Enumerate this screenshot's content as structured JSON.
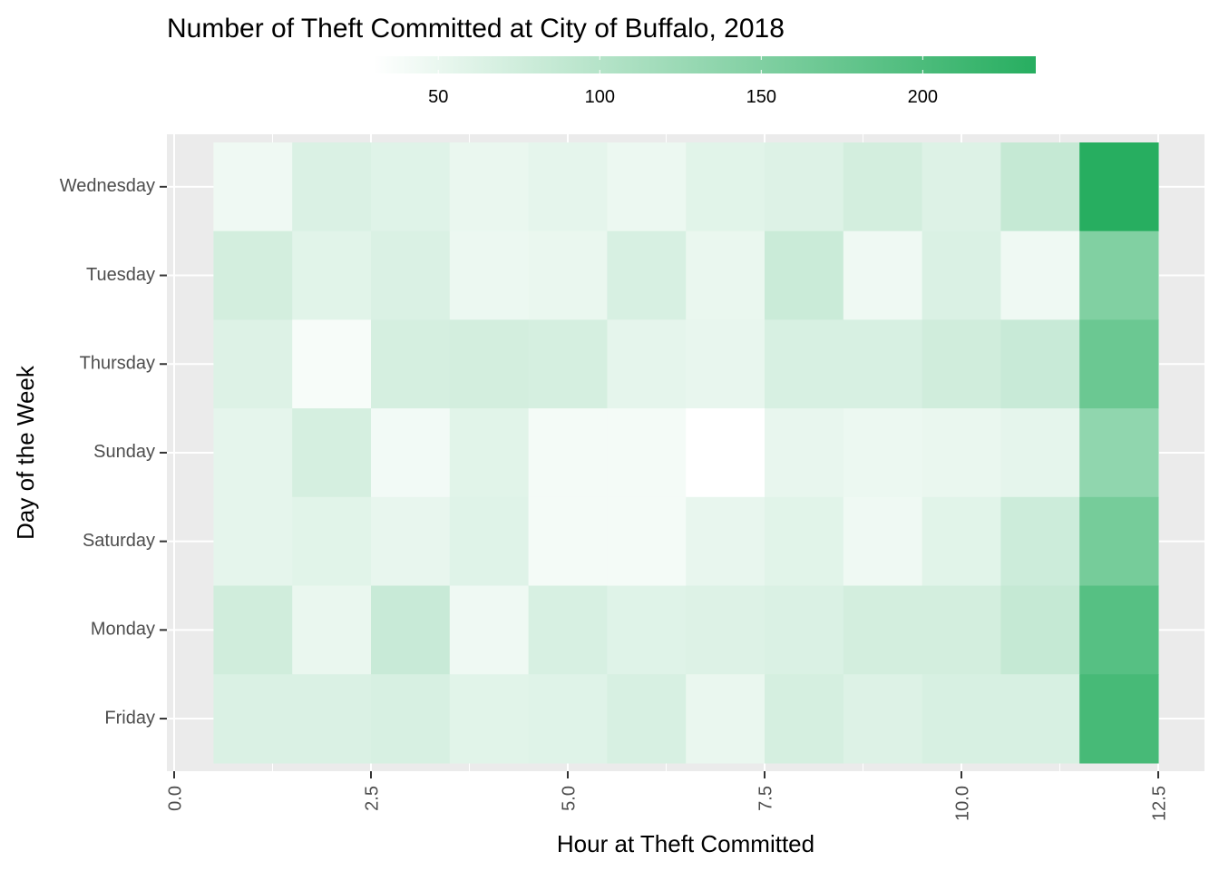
{
  "chart_data": {
    "type": "heatmap",
    "title": "Number of Theft Committed at City of Buffalo, 2018",
    "xlabel": "Hour at Theft Committed",
    "ylabel": "Day of the Week",
    "x_ticks": [
      "0.0",
      "2.5",
      "5.0",
      "7.5",
      "10.0",
      "12.5"
    ],
    "x_tick_values": [
      0,
      2.5,
      5,
      7.5,
      10,
      12.5
    ],
    "xlim": [
      0,
      12.5
    ],
    "x_categories": [
      1,
      2,
      3,
      4,
      5,
      6,
      7,
      8,
      9,
      10,
      11,
      12
    ],
    "y_categories": [
      "Wednesday",
      "Tuesday",
      "Thursday",
      "Sunday",
      "Saturday",
      "Monday",
      "Friday"
    ],
    "values": [
      [
        45,
        65,
        60,
        50,
        55,
        48,
        58,
        62,
        72,
        62,
        85,
        235
      ],
      [
        72,
        58,
        65,
        48,
        50,
        68,
        50,
        80,
        45,
        65,
        45,
        150
      ],
      [
        62,
        38,
        70,
        72,
        70,
        55,
        52,
        68,
        68,
        75,
        82,
        170
      ],
      [
        55,
        70,
        42,
        58,
        40,
        40,
        30,
        52,
        48,
        50,
        55,
        135
      ],
      [
        55,
        58,
        52,
        60,
        40,
        40,
        52,
        58,
        45,
        58,
        78,
        160
      ],
      [
        75,
        50,
        82,
        45,
        68,
        60,
        62,
        65,
        72,
        72,
        85,
        190
      ],
      [
        65,
        65,
        68,
        58,
        60,
        68,
        50,
        70,
        62,
        68,
        68,
        205
      ]
    ],
    "legend": {
      "position": "top",
      "breaks": [
        50,
        100,
        150,
        200
      ],
      "labels": [
        "50",
        "100",
        "150",
        "200"
      ],
      "min": 30,
      "max": 235
    },
    "colors": {
      "low": "#ffffff",
      "high": "#27ae60",
      "panel": "#ebebeb",
      "grid": "#ffffff",
      "tick": "#333333"
    },
    "grid": true
  }
}
